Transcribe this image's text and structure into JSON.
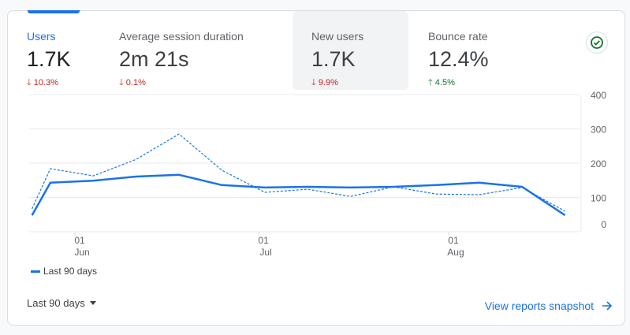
{
  "metrics": [
    {
      "label": "Users",
      "value": "1.7K",
      "delta": "10.3%",
      "direction": "down",
      "selected_tab": true
    },
    {
      "label": "Average session duration",
      "value": "2m 21s",
      "delta": "0.1%",
      "direction": "down"
    },
    {
      "label": "New users",
      "value": "1.7K",
      "delta": "9.9%",
      "direction": "down",
      "hovered": true
    },
    {
      "label": "Bounce rate",
      "value": "12.4%",
      "delta": "4.5%",
      "direction": "up"
    }
  ],
  "status_icon": "check-circle-icon",
  "chart_data": {
    "type": "line",
    "x": [
      "May 25",
      "May 28",
      "Jun 4",
      "Jun 11",
      "Jun 18",
      "Jun 25",
      "Jul 2",
      "Jul 9",
      "Jul 16",
      "Jul 23",
      "Jul 30",
      "Aug 6",
      "Aug 13",
      "Aug 20"
    ],
    "series": [
      {
        "name": "Last 90 days",
        "style": "solid",
        "values": [
          48,
          143,
          149,
          161,
          166,
          136,
          129,
          131,
          129,
          131,
          136,
          143,
          131,
          48
        ]
      },
      {
        "style": "dashed",
        "values": [
          67,
          184,
          163,
          211,
          285,
          179,
          115,
          124,
          103,
          131,
          110,
          108,
          129,
          60
        ]
      }
    ],
    "yticks": [
      "400",
      "300",
      "200",
      "100",
      "0"
    ],
    "ylim": [
      0,
      400
    ],
    "xticks": [
      {
        "day": "01",
        "month": "Jun"
      },
      {
        "day": "01",
        "month": "Jul"
      },
      {
        "day": "01",
        "month": "Aug"
      }
    ],
    "grid": true,
    "legend": "bottom-left",
    "color": "#1a73e8"
  },
  "legend": {
    "label": "Last 90 days"
  },
  "footer": {
    "range_label": "Last 90 days",
    "snapshot_label": "View reports snapshot"
  }
}
